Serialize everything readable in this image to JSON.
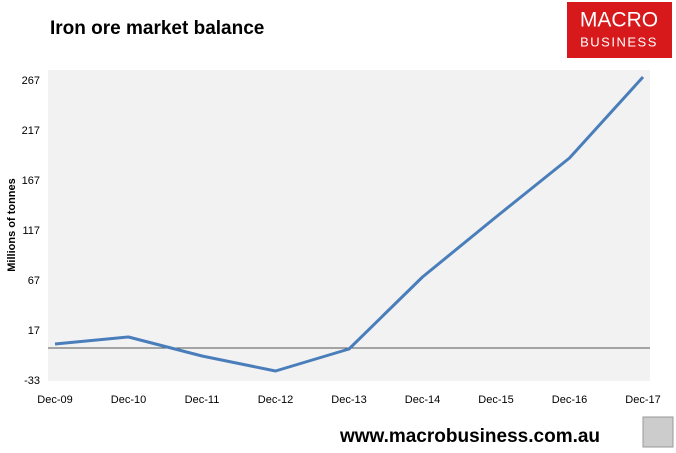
{
  "chart_data": {
    "type": "line",
    "title": "Iron ore market balance",
    "y_label": "Millions of tonnes",
    "categories": [
      "Dec-09",
      "Dec-10",
      "Dec-11",
      "Dec-12",
      "Dec-13",
      "Dec-14",
      "Dec-15",
      "Dec-16",
      "Dec-17"
    ],
    "series": [
      {
        "name": "Iron ore market balance",
        "color": "#4a7ebb",
        "values": [
          4,
          11,
          -8,
          -23,
          -1,
          71,
          131,
          190,
          271
        ]
      }
    ],
    "ylim": [
      -33,
      278
    ],
    "yticks": [
      -33,
      17,
      67,
      117,
      167,
      217,
      267
    ],
    "reference_line": 0,
    "grid": false
  },
  "logo": {
    "line1": "MACRO",
    "line2": "BUSINESS"
  },
  "footer": "www.macrobusiness.com.au"
}
